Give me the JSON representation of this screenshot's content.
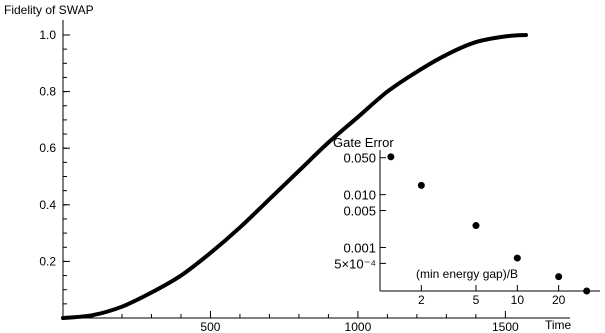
{
  "chart_data": [
    {
      "type": "line",
      "ylabel": "Fidelity of SWAP",
      "xlabel": "Time",
      "xlim": [
        0,
        1600
      ],
      "ylim": [
        0,
        1.0
      ],
      "x_ticks": [
        "500",
        "1000",
        "1500"
      ],
      "y_ticks": [
        "0.2",
        "0.4",
        "0.6",
        "0.8",
        "1.0"
      ],
      "grid": false,
      "series": [
        {
          "x": [
            0,
            100,
            200,
            300,
            400,
            500,
            600,
            700,
            800,
            900,
            1000,
            1100,
            1200,
            1300,
            1400,
            1500,
            1570
          ],
          "y": [
            0.0,
            0.01,
            0.04,
            0.09,
            0.15,
            0.23,
            0.32,
            0.42,
            0.52,
            0.62,
            0.71,
            0.8,
            0.87,
            0.93,
            0.975,
            0.995,
            1.0
          ]
        }
      ]
    },
    {
      "type": "scatter",
      "title": "Gate Error",
      "xlabel": "(min energy gap)/B",
      "scale": "log-log",
      "x_ticks": [
        "2",
        "5",
        "10",
        "20"
      ],
      "y_ticks": [
        "0.050",
        "0.010",
        "0.005",
        "0.001",
        "5×10⁻⁴"
      ],
      "xlim": [
        1,
        40
      ],
      "ylim": [
        0.00015,
        0.07
      ],
      "grid": false,
      "points": [
        {
          "x": 1.2,
          "y": 0.052
        },
        {
          "x": 2.0,
          "y": 0.015
        },
        {
          "x": 5.0,
          "y": 0.0026
        },
        {
          "x": 10.0,
          "y": 0.00063
        },
        {
          "x": 20.0,
          "y": 0.00028
        },
        {
          "x": 32.0,
          "y": 0.00015
        }
      ]
    }
  ]
}
